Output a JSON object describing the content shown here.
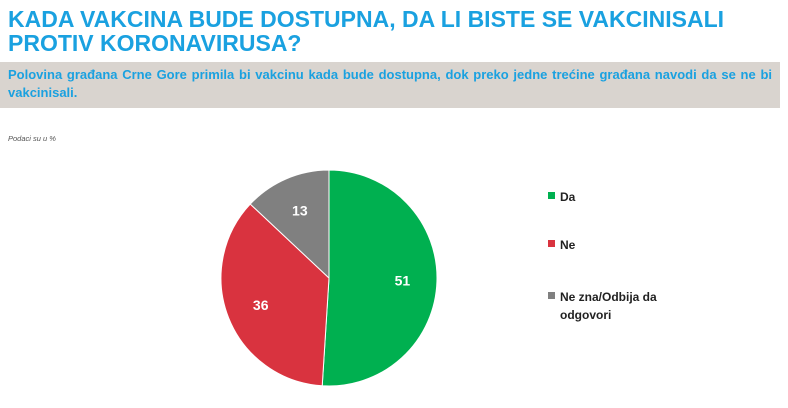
{
  "title": "KADA VAKCINA BUDE DOSTUPNA, DA LI BISTE SE VAKCINISALI PROTIV KORONAVIRUSA?",
  "subtitle": "Polovina građana Crne Gore primila bi vakcinu kada bude dostupna, dok preko jedne trećine građana navodi da se ne bi vakcinisali.",
  "note": "Podaci su u %",
  "colors": {
    "accent": "#1aa1e0",
    "subtitle_bg": "#d9d4cf",
    "da": "#00b050",
    "ne": "#d9333f",
    "ne_zna": "#808080"
  },
  "chart_data": {
    "type": "pie",
    "title": "",
    "slices": [
      {
        "label": "Da",
        "value": 51,
        "color": "#00b050"
      },
      {
        "label": "Ne",
        "value": 36,
        "color": "#d9333f"
      },
      {
        "label": "Ne zna/Odbija da odgovori",
        "value": 13,
        "color": "#808080"
      }
    ],
    "start": "12 o'clock",
    "direction": "clockwise",
    "data_labels": true,
    "legend_position": "right"
  }
}
